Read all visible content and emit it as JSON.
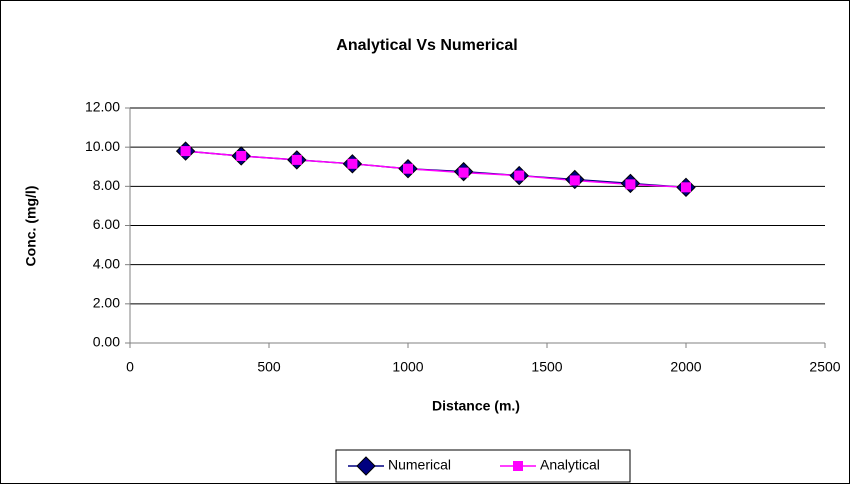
{
  "chart_data": {
    "type": "line",
    "title": "Analytical Vs Numerical",
    "x_label": "Distance (m.)",
    "y_label": "Conc. (mg/l)",
    "x": [
      200,
      400,
      600,
      800,
      1000,
      1200,
      1400,
      1600,
      1800,
      2000
    ],
    "series": [
      {
        "name": "Numerical",
        "color": "#000080",
        "marker": "diamond",
        "values": [
          9.8,
          9.55,
          9.35,
          9.15,
          8.9,
          8.75,
          8.55,
          8.35,
          8.15,
          7.95
        ]
      },
      {
        "name": "Analytical",
        "color": "#ff00ff",
        "marker": "square",
        "values": [
          9.8,
          9.55,
          9.35,
          9.15,
          8.9,
          8.7,
          8.55,
          8.3,
          8.1,
          7.95
        ]
      }
    ],
    "xlim": [
      0,
      2500
    ],
    "xticks": [
      0,
      500,
      1000,
      1500,
      2000,
      2500
    ],
    "ylim": [
      0,
      12
    ],
    "yticks": [
      {
        "value": 0,
        "label": "0.00"
      },
      {
        "value": 2,
        "label": "2.00"
      },
      {
        "value": 4,
        "label": "4.00"
      },
      {
        "value": 6,
        "label": "6.00"
      },
      {
        "value": 8,
        "label": "8.00"
      },
      {
        "value": 10,
        "label": "10.00"
      },
      {
        "value": 12,
        "label": "12.00"
      }
    ],
    "grid": true,
    "legend": "bottom"
  }
}
